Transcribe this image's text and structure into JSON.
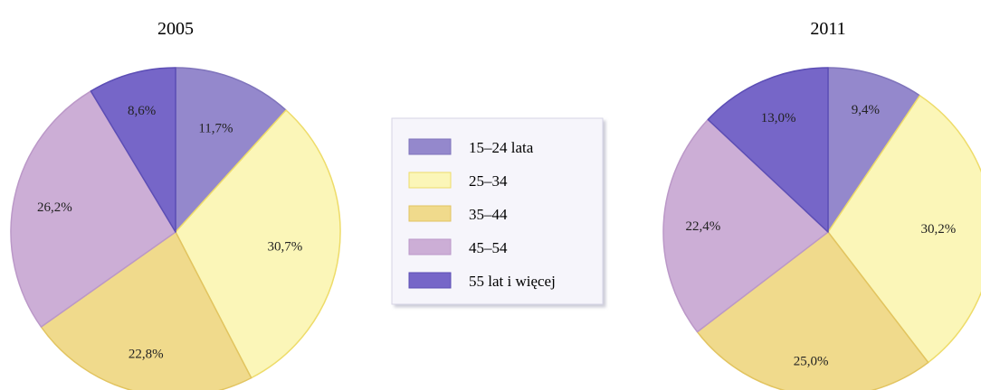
{
  "colors": {
    "c1": "#9488cc",
    "c2": "#fbf6b8",
    "c3": "#f0da8c",
    "c4": "#ccaed6",
    "c5": "#7666c8",
    "edge1": "#7f74bb",
    "edge2": "#eedc6a",
    "edge3": "#e2c460",
    "edge4": "#bb98c8",
    "edge5": "#5c4eb5"
  },
  "chart_data": [
    {
      "type": "pie",
      "title": "2005",
      "categories": [
        "15–24 lata",
        "25–34",
        "35–44",
        "45–54",
        "55 lat i więcej"
      ],
      "values": [
        11.7,
        30.7,
        22.8,
        26.2,
        8.6
      ],
      "labels": [
        "11,7%",
        "30,7%",
        "22,8%",
        "26,2%",
        "8,6%"
      ],
      "legend": "center"
    },
    {
      "type": "pie",
      "title": "2011",
      "categories": [
        "15–24 lata",
        "25–34",
        "35–44",
        "45–54",
        "55 lat i więcej"
      ],
      "values": [
        9.4,
        30.2,
        25.0,
        22.4,
        13.0
      ],
      "labels": [
        "9,4%",
        "30,2%",
        "25,0%",
        "22,4%",
        "13,0%"
      ],
      "legend": "center"
    }
  ],
  "legend": {
    "items": [
      "15–24 lata",
      "25–34",
      "35–44",
      "45–54",
      "55 lat i więcej"
    ]
  }
}
